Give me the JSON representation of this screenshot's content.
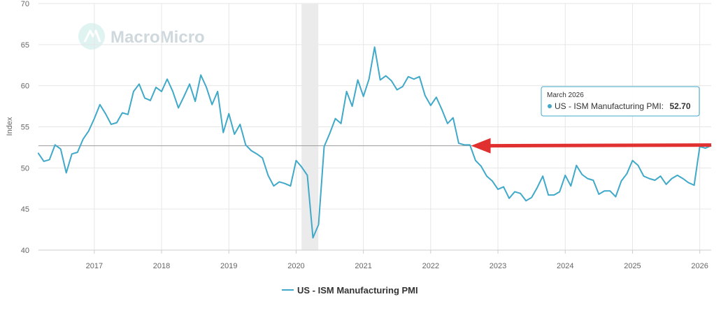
{
  "watermark": {
    "brand": "MacroMicro"
  },
  "colors": {
    "series": "#40a9c9",
    "recession": "#ebebeb",
    "arrow": "#e03030",
    "reference_line": "#9a9a9a",
    "tooltip_border": "#40a9c9"
  },
  "tooltip": {
    "date": "March 2026",
    "series_label": "US - ISM Manufacturing PMI:",
    "value": "52.70"
  },
  "chart_data": {
    "type": "line",
    "title": "",
    "xlabel": "",
    "ylabel": "Index",
    "ylim": [
      40,
      70
    ],
    "y_ticks": [
      40,
      45,
      50,
      55,
      60,
      65,
      70
    ],
    "x_range": [
      2016.17,
      2026.17
    ],
    "x_ticks": [
      2017,
      2018,
      2019,
      2020,
      2021,
      2022,
      2023,
      2024,
      2025,
      2026
    ],
    "x_tick_labels": [
      "2017",
      "2018",
      "2019",
      "2020",
      "2021",
      "2022",
      "2023",
      "2024",
      "2025",
      "2026"
    ],
    "recession_band": [
      2020.08,
      2020.33
    ],
    "reference_value": 52.7,
    "annotation": {
      "type": "arrow",
      "from_x": 2026.17,
      "to_x": 2022.6,
      "y": 52.7
    },
    "legend": {
      "position": "bottom-center"
    },
    "series": [
      {
        "name": "US - ISM Manufacturing PMI",
        "start": "2016-03",
        "frequency": "monthly",
        "values": [
          51.8,
          50.8,
          51.0,
          52.8,
          52.3,
          49.4,
          51.7,
          51.9,
          53.5,
          54.5,
          56.0,
          57.7,
          56.6,
          55.3,
          55.5,
          56.7,
          56.5,
          59.3,
          60.2,
          58.5,
          58.2,
          59.8,
          59.3,
          60.8,
          59.3,
          57.3,
          58.7,
          60.2,
          58.1,
          61.3,
          59.8,
          57.7,
          59.3,
          54.3,
          56.6,
          54.1,
          55.3,
          52.8,
          52.1,
          51.7,
          51.2,
          49.1,
          47.8,
          48.3,
          48.1,
          47.8,
          50.9,
          50.1,
          49.1,
          41.5,
          43.1,
          52.6,
          54.2,
          56.0,
          55.4,
          59.3,
          57.5,
          60.7,
          58.7,
          60.8,
          64.7,
          60.7,
          61.2,
          60.6,
          59.5,
          59.9,
          61.1,
          60.8,
          61.1,
          58.8,
          57.6,
          58.6,
          57.1,
          55.4,
          56.1,
          53.0,
          52.8,
          52.8,
          50.9,
          50.2,
          49.0,
          48.4,
          47.4,
          47.7,
          46.3,
          47.1,
          46.9,
          46.0,
          46.4,
          47.6,
          49.0,
          46.7,
          46.7,
          47.1,
          49.1,
          47.8,
          50.3,
          49.2,
          48.7,
          48.5,
          46.8,
          47.2,
          47.2,
          46.5,
          48.4,
          49.3,
          50.9,
          50.3,
          49.0,
          48.7,
          48.5,
          49.0,
          48.0,
          48.7,
          49.1,
          48.7,
          48.2,
          47.9,
          52.6,
          52.4,
          52.7
        ]
      }
    ]
  }
}
